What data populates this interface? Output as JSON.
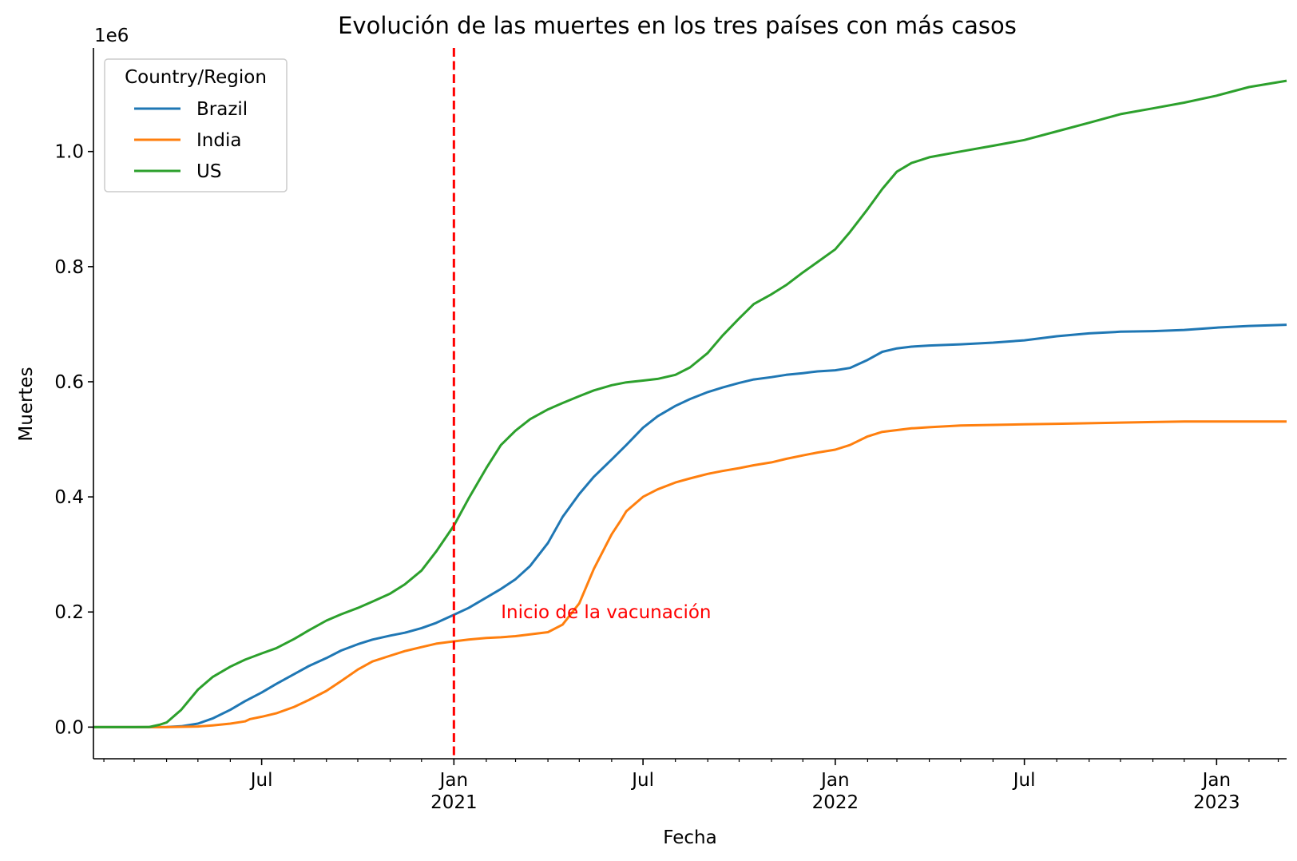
{
  "chart_data": {
    "type": "line",
    "title": "Evolución de las muertes en los tres países con más casos",
    "xlabel": "Fecha",
    "ylabel": "Muertes",
    "y_offset_label": "1e6",
    "x_range": [
      "2020-01-22",
      "2023-03-09"
    ],
    "ylim": [
      -0.055,
      1.18
    ],
    "y_ticks": [
      {
        "value": 0.0,
        "label": "0.0"
      },
      {
        "value": 0.2,
        "label": "0.2"
      },
      {
        "value": 0.4,
        "label": "0.4"
      },
      {
        "value": 0.6,
        "label": "0.6"
      },
      {
        "value": 0.8,
        "label": "0.8"
      },
      {
        "value": 1.0,
        "label": "1.0"
      }
    ],
    "x_major_ticks": [
      {
        "date": "2020-07-01",
        "label": "Jul",
        "sublabel": ""
      },
      {
        "date": "2021-01-01",
        "label": "Jan",
        "sublabel": "2021"
      },
      {
        "date": "2021-07-01",
        "label": "Jul",
        "sublabel": ""
      },
      {
        "date": "2022-01-01",
        "label": "Jan",
        "sublabel": "2022"
      },
      {
        "date": "2022-07-01",
        "label": "Jul",
        "sublabel": ""
      },
      {
        "date": "2023-01-01",
        "label": "Jan",
        "sublabel": "2023"
      }
    ],
    "x_minor_ticks": [
      "2020-02-01",
      "2020-03-01",
      "2020-04-01",
      "2020-05-01",
      "2020-06-01",
      "2020-08-01",
      "2020-09-01",
      "2020-10-01",
      "2020-11-01",
      "2020-12-01",
      "2021-02-01",
      "2021-03-01",
      "2021-04-01",
      "2021-05-01",
      "2021-06-01",
      "2021-08-01",
      "2021-09-01",
      "2021-10-01",
      "2021-11-01",
      "2021-12-01",
      "2022-02-01",
      "2022-03-01",
      "2022-04-01",
      "2022-05-01",
      "2022-06-01",
      "2022-08-01",
      "2022-09-01",
      "2022-10-01",
      "2022-11-01",
      "2022-12-01",
      "2023-02-01",
      "2023-03-01"
    ],
    "vline": {
      "date": "2021-01-01",
      "color": "#ff0000",
      "style": "dashed"
    },
    "annotation": {
      "text": "Inicio de la vacunación",
      "date": "2021-02-15",
      "y": 0.2,
      "color": "#ff0000"
    },
    "legend": {
      "title": "Country/Region",
      "position": "top-left"
    },
    "series": [
      {
        "name": "Brazil",
        "color": "#1f77b4",
        "points": [
          [
            "2020-01-22",
            0
          ],
          [
            "2020-03-15",
            0
          ],
          [
            "2020-04-01",
            0.0002
          ],
          [
            "2020-04-15",
            0.0015
          ],
          [
            "2020-05-01",
            0.006
          ],
          [
            "2020-05-15",
            0.015
          ],
          [
            "2020-06-01",
            0.03
          ],
          [
            "2020-06-15",
            0.045
          ],
          [
            "2020-07-01",
            0.06
          ],
          [
            "2020-07-15",
            0.075
          ],
          [
            "2020-08-01",
            0.092
          ],
          [
            "2020-08-15",
            0.106
          ],
          [
            "2020-09-01",
            0.12
          ],
          [
            "2020-09-15",
            0.133
          ],
          [
            "2020-10-01",
            0.144
          ],
          [
            "2020-10-15",
            0.152
          ],
          [
            "2020-11-01",
            0.159
          ],
          [
            "2020-11-15",
            0.164
          ],
          [
            "2020-12-01",
            0.172
          ],
          [
            "2020-12-15",
            0.181
          ],
          [
            "2021-01-01",
            0.195
          ],
          [
            "2021-01-15",
            0.207
          ],
          [
            "2021-02-01",
            0.225
          ],
          [
            "2021-02-15",
            0.24
          ],
          [
            "2021-03-01",
            0.257
          ],
          [
            "2021-03-15",
            0.28
          ],
          [
            "2021-04-01",
            0.32
          ],
          [
            "2021-04-15",
            0.365
          ],
          [
            "2021-05-01",
            0.405
          ],
          [
            "2021-05-15",
            0.435
          ],
          [
            "2021-06-01",
            0.465
          ],
          [
            "2021-06-15",
            0.49
          ],
          [
            "2021-07-01",
            0.52
          ],
          [
            "2021-07-15",
            0.54
          ],
          [
            "2021-08-01",
            0.558
          ],
          [
            "2021-08-15",
            0.57
          ],
          [
            "2021-09-01",
            0.582
          ],
          [
            "2021-09-15",
            0.59
          ],
          [
            "2021-10-01",
            0.598
          ],
          [
            "2021-10-15",
            0.604
          ],
          [
            "2021-11-01",
            0.608
          ],
          [
            "2021-11-15",
            0.612
          ],
          [
            "2021-12-01",
            0.615
          ],
          [
            "2021-12-15",
            0.618
          ],
          [
            "2022-01-01",
            0.62
          ],
          [
            "2022-01-15",
            0.624
          ],
          [
            "2022-02-01",
            0.638
          ],
          [
            "2022-02-15",
            0.652
          ],
          [
            "2022-03-01",
            0.658
          ],
          [
            "2022-03-15",
            0.661
          ],
          [
            "2022-04-01",
            0.663
          ],
          [
            "2022-05-01",
            0.665
          ],
          [
            "2022-06-01",
            0.668
          ],
          [
            "2022-07-01",
            0.672
          ],
          [
            "2022-08-01",
            0.679
          ],
          [
            "2022-09-01",
            0.684
          ],
          [
            "2022-10-01",
            0.687
          ],
          [
            "2022-11-01",
            0.688
          ],
          [
            "2022-12-01",
            0.69
          ],
          [
            "2023-01-01",
            0.694
          ],
          [
            "2023-02-01",
            0.697
          ],
          [
            "2023-03-09",
            0.699
          ]
        ]
      },
      {
        "name": "India",
        "color": "#ff7f0e",
        "points": [
          [
            "2020-01-22",
            0
          ],
          [
            "2020-04-01",
            0
          ],
          [
            "2020-04-15",
            0.0005
          ],
          [
            "2020-05-01",
            0.001
          ],
          [
            "2020-05-15",
            0.003
          ],
          [
            "2020-06-01",
            0.006
          ],
          [
            "2020-06-15",
            0.01
          ],
          [
            "2020-06-20",
            0.014
          ],
          [
            "2020-07-01",
            0.018
          ],
          [
            "2020-07-15",
            0.024
          ],
          [
            "2020-08-01",
            0.035
          ],
          [
            "2020-08-15",
            0.047
          ],
          [
            "2020-09-01",
            0.063
          ],
          [
            "2020-09-15",
            0.08
          ],
          [
            "2020-10-01",
            0.1
          ],
          [
            "2020-10-15",
            0.114
          ],
          [
            "2020-11-01",
            0.124
          ],
          [
            "2020-11-15",
            0.132
          ],
          [
            "2020-12-01",
            0.139
          ],
          [
            "2020-12-15",
            0.145
          ],
          [
            "2021-01-01",
            0.149
          ],
          [
            "2021-01-15",
            0.152
          ],
          [
            "2021-02-01",
            0.155
          ],
          [
            "2021-02-15",
            0.156
          ],
          [
            "2021-03-01",
            0.158
          ],
          [
            "2021-03-15",
            0.161
          ],
          [
            "2021-04-01",
            0.165
          ],
          [
            "2021-04-15",
            0.178
          ],
          [
            "2021-05-01",
            0.215
          ],
          [
            "2021-05-15",
            0.275
          ],
          [
            "2021-06-01",
            0.335
          ],
          [
            "2021-06-10",
            0.36
          ],
          [
            "2021-06-15",
            0.375
          ],
          [
            "2021-07-01",
            0.4
          ],
          [
            "2021-07-15",
            0.413
          ],
          [
            "2021-08-01",
            0.425
          ],
          [
            "2021-08-15",
            0.432
          ],
          [
            "2021-09-01",
            0.44
          ],
          [
            "2021-09-15",
            0.445
          ],
          [
            "2021-10-01",
            0.45
          ],
          [
            "2021-10-15",
            0.455
          ],
          [
            "2021-11-01",
            0.46
          ],
          [
            "2021-11-15",
            0.466
          ],
          [
            "2021-12-01",
            0.472
          ],
          [
            "2021-12-15",
            0.477
          ],
          [
            "2022-01-01",
            0.482
          ],
          [
            "2022-01-15",
            0.49
          ],
          [
            "2022-02-01",
            0.505
          ],
          [
            "2022-02-15",
            0.513
          ],
          [
            "2022-03-01",
            0.516
          ],
          [
            "2022-03-15",
            0.519
          ],
          [
            "2022-04-01",
            0.521
          ],
          [
            "2022-05-01",
            0.524
          ],
          [
            "2022-06-01",
            0.525
          ],
          [
            "2022-07-01",
            0.526
          ],
          [
            "2022-08-01",
            0.527
          ],
          [
            "2022-09-01",
            0.528
          ],
          [
            "2022-10-01",
            0.529
          ],
          [
            "2022-11-01",
            0.53
          ],
          [
            "2022-12-01",
            0.531
          ],
          [
            "2023-01-01",
            0.531
          ],
          [
            "2023-03-09",
            0.531
          ]
        ]
      },
      {
        "name": "US",
        "color": "#2ca02c",
        "points": [
          [
            "2020-01-22",
            0
          ],
          [
            "2020-03-01",
            0
          ],
          [
            "2020-03-15",
            0.0001
          ],
          [
            "2020-03-25",
            0.004
          ],
          [
            "2020-04-01",
            0.008
          ],
          [
            "2020-04-15",
            0.03
          ],
          [
            "2020-05-01",
            0.065
          ],
          [
            "2020-05-15",
            0.087
          ],
          [
            "2020-06-01",
            0.105
          ],
          [
            "2020-06-15",
            0.117
          ],
          [
            "2020-07-01",
            0.128
          ],
          [
            "2020-07-15",
            0.137
          ],
          [
            "2020-08-01",
            0.153
          ],
          [
            "2020-08-15",
            0.168
          ],
          [
            "2020-09-01",
            0.185
          ],
          [
            "2020-09-15",
            0.196
          ],
          [
            "2020-10-01",
            0.207
          ],
          [
            "2020-10-15",
            0.218
          ],
          [
            "2020-11-01",
            0.232
          ],
          [
            "2020-11-15",
            0.248
          ],
          [
            "2020-12-01",
            0.272
          ],
          [
            "2020-12-15",
            0.305
          ],
          [
            "2021-01-01",
            0.35
          ],
          [
            "2021-01-15",
            0.397
          ],
          [
            "2021-02-01",
            0.45
          ],
          [
            "2021-02-15",
            0.49
          ],
          [
            "2021-03-01",
            0.515
          ],
          [
            "2021-03-15",
            0.535
          ],
          [
            "2021-04-01",
            0.552
          ],
          [
            "2021-04-15",
            0.563
          ],
          [
            "2021-05-01",
            0.575
          ],
          [
            "2021-05-15",
            0.585
          ],
          [
            "2021-06-01",
            0.594
          ],
          [
            "2021-06-15",
            0.599
          ],
          [
            "2021-07-01",
            0.602
          ],
          [
            "2021-07-15",
            0.605
          ],
          [
            "2021-08-01",
            0.612
          ],
          [
            "2021-08-15",
            0.625
          ],
          [
            "2021-09-01",
            0.65
          ],
          [
            "2021-09-15",
            0.68
          ],
          [
            "2021-10-01",
            0.71
          ],
          [
            "2021-10-15",
            0.735
          ],
          [
            "2021-11-01",
            0.752
          ],
          [
            "2021-11-15",
            0.768
          ],
          [
            "2021-12-01",
            0.79
          ],
          [
            "2021-12-15",
            0.808
          ],
          [
            "2022-01-01",
            0.83
          ],
          [
            "2022-01-15",
            0.86
          ],
          [
            "2022-02-01",
            0.9
          ],
          [
            "2022-02-15",
            0.935
          ],
          [
            "2022-03-01",
            0.965
          ],
          [
            "2022-03-15",
            0.98
          ],
          [
            "2022-04-01",
            0.99
          ],
          [
            "2022-05-01",
            1.0
          ],
          [
            "2022-06-01",
            1.01
          ],
          [
            "2022-07-01",
            1.02
          ],
          [
            "2022-08-01",
            1.035
          ],
          [
            "2022-09-01",
            1.05
          ],
          [
            "2022-10-01",
            1.065
          ],
          [
            "2022-11-01",
            1.075
          ],
          [
            "2022-12-01",
            1.085
          ],
          [
            "2023-01-01",
            1.097
          ],
          [
            "2023-02-01",
            1.112
          ],
          [
            "2023-03-09",
            1.123
          ]
        ]
      }
    ]
  }
}
